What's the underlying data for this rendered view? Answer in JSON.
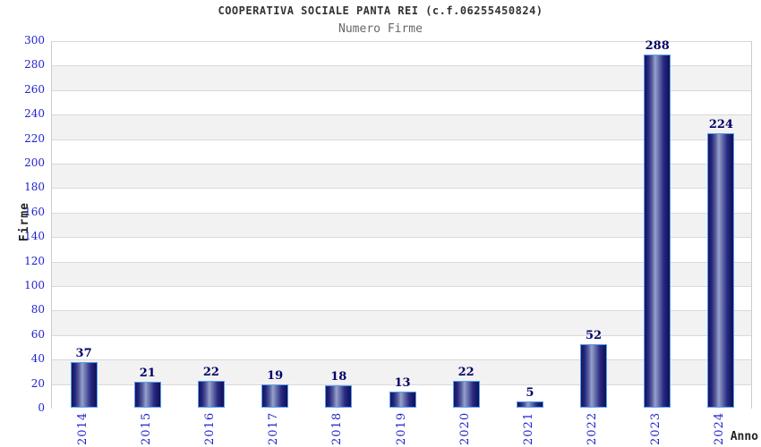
{
  "header": {
    "title": "COOPERATIVA SOCIALE PANTA REI (c.f.06255450824)",
    "subtitle": "Numero Firme"
  },
  "chart_data": {
    "type": "bar",
    "title": "COOPERATIVA SOCIALE PANTA REI (c.f.06255450824)",
    "subtitle": "Numero Firme",
    "categories": [
      "2014",
      "2015",
      "2016",
      "2017",
      "2018",
      "2019",
      "2020",
      "2021",
      "2022",
      "2023",
      "2024"
    ],
    "values": [
      37,
      21,
      22,
      19,
      18,
      13,
      22,
      5,
      52,
      288,
      224
    ],
    "xlabel": "Anno",
    "ylabel": "Firme",
    "ylim": [
      0,
      300
    ],
    "ytick_step": 20,
    "yticks": [
      0,
      20,
      40,
      60,
      80,
      100,
      120,
      140,
      160,
      180,
      200,
      220,
      240,
      260,
      280,
      300
    ],
    "legend_position": "none",
    "grid": "horizontal-bands-alternating",
    "colors": {
      "tick_label": "#2222cc",
      "value_label": "#000066",
      "bar_dark": "#15155e",
      "bar_highlight": "#97a0cd",
      "bar_border": "#55a0f0",
      "band_gray": "#f2f2f2",
      "band_white": "#ffffff",
      "gridline": "#d9d9d9",
      "title": "#333333",
      "subtitle": "#666666"
    }
  }
}
